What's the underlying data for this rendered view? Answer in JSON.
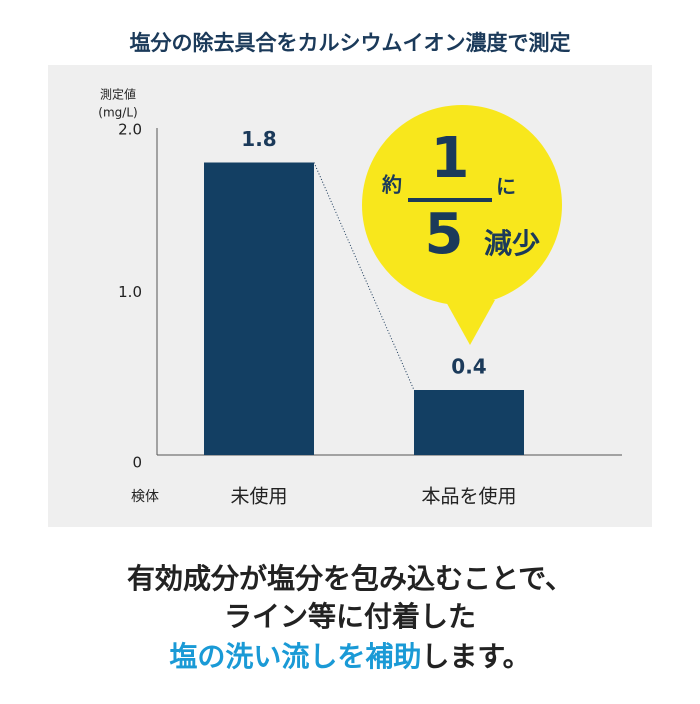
{
  "chart_data": {
    "type": "bar",
    "title": "塩分の除去具合をカルシウムイオン濃度で測定",
    "y_label": "測定値",
    "y_unit": "(mg/L)",
    "x_label": "検体",
    "categories": [
      "未使用",
      "本品を使用"
    ],
    "values": [
      1.8,
      0.4
    ],
    "color": "#133f63",
    "ylim": [
      0,
      2
    ],
    "yticks": [
      0,
      {
        "value": 1,
        "label": "1.0"
      },
      {
        "value": 2,
        "label": "2.0"
      }
    ],
    "callout": {
      "prefix": "約",
      "numerator": "1",
      "denominator": "5",
      "suffix_top": "に",
      "suffix": "減少"
    }
  },
  "caption": {
    "lines": [
      "有効成分が塩分を包み込むことで、",
      "ライン等に付着した"
    ],
    "highlight": "塩の洗い流しを補助",
    "rest": "します。"
  }
}
